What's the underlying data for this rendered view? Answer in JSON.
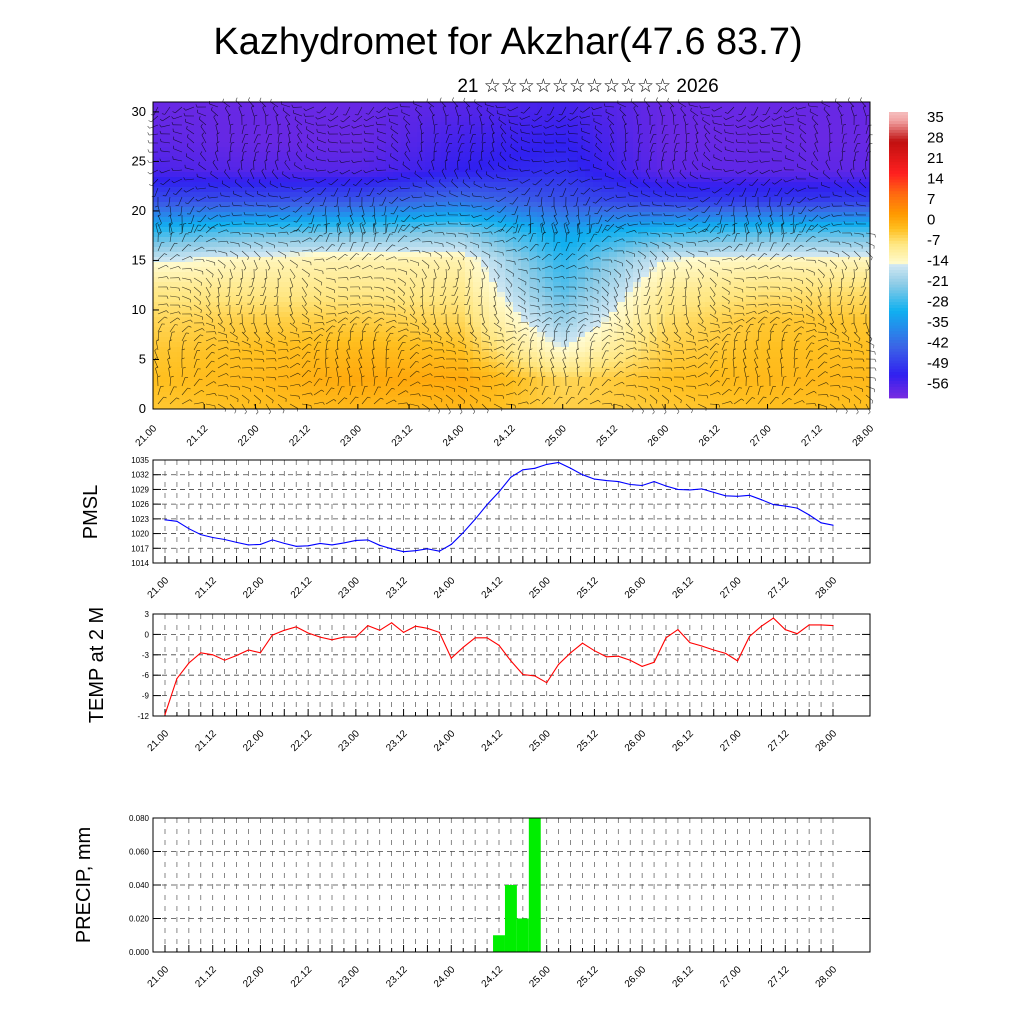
{
  "title": "Kazhydromet for Akzhar(47.6 83.7)",
  "subtitle": "21 ☆☆☆☆☆☆☆☆☆☆☆ 2026",
  "time_labels": [
    "21.00",
    "21.12",
    "22.00",
    "22.12",
    "23.00",
    "23.12",
    "24.00",
    "24.12",
    "25.00",
    "25.12",
    "26.00",
    "26.12",
    "27.00",
    "27.12",
    "28.00"
  ],
  "chart_data": [
    {
      "type": "heatmap",
      "name": "vertical-section",
      "x_days": [
        21,
        22,
        23,
        24,
        25,
        26,
        27,
        28
      ],
      "y_heights": [
        0,
        3,
        6,
        9,
        12,
        15,
        18,
        21,
        24,
        27,
        30
      ],
      "yticks": [
        "0",
        "5",
        "10",
        "15",
        "20",
        "25",
        "30"
      ],
      "ylim": [
        0,
        31
      ],
      "values": [
        [
          -3,
          -2,
          -1,
          -1,
          -4,
          -3,
          -2,
          -2
        ],
        [
          -2,
          -1,
          1,
          1,
          -5,
          -2,
          -1,
          -1
        ],
        [
          -3,
          -2,
          -1,
          -2,
          -14,
          -4,
          -2,
          -2
        ],
        [
          -5,
          -4,
          -4,
          -5,
          -20,
          -6,
          -3,
          -3
        ],
        [
          -8,
          -8,
          -8,
          -8,
          -25,
          -9,
          -7,
          -6
        ],
        [
          -15,
          -12,
          -11,
          -11,
          -28,
          -14,
          -12,
          -12
        ],
        [
          -28,
          -25,
          -24,
          -22,
          -32,
          -28,
          -26,
          -26
        ],
        [
          -45,
          -45,
          -44,
          -40,
          -45,
          -48,
          -48,
          -48
        ],
        [
          -55,
          -56,
          -56,
          -52,
          -50,
          -57,
          -57,
          -57
        ],
        [
          -57,
          -58,
          -58,
          -54,
          -52,
          -58,
          -58,
          -58
        ],
        [
          -58,
          -58,
          -58,
          -56,
          -54,
          -58,
          -58,
          -58
        ]
      ],
      "colorbar_labels": [
        "35",
        "28",
        "21",
        "14",
        "7",
        "0",
        "-7",
        "-14",
        "-21",
        "-28",
        "-35",
        "-42",
        "-49",
        "-56"
      ],
      "colorbar_range": [
        -60,
        38
      ],
      "overlay": "wind barbs"
    },
    {
      "type": "line",
      "name": "pmsl",
      "ylabel": "PMSL",
      "color": "#0000ff",
      "ylim": [
        1014,
        1035
      ],
      "yticks": [
        "1035",
        "1032",
        "1029",
        "1026",
        "1023",
        "1020",
        "1017",
        "1014"
      ],
      "step_hours": 3,
      "values": [
        1022.8,
        1022.5,
        1021,
        1019.8,
        1019.2,
        1018.8,
        1018.2,
        1017.7,
        1017.8,
        1018.7,
        1018,
        1017.4,
        1017.5,
        1018,
        1017.7,
        1018.1,
        1018.6,
        1018.7,
        1017.6,
        1016.9,
        1016.3,
        1016.5,
        1016.9,
        1016.4,
        1017.8,
        1020.2,
        1022.9,
        1025.9,
        1028.5,
        1031.5,
        1033,
        1033.3,
        1034.1,
        1034.5,
        1033.3,
        1032,
        1031.1,
        1030.8,
        1030.6,
        1030,
        1029.8,
        1030.6,
        1029.7,
        1029,
        1028.9,
        1029.1,
        1028.4,
        1027.7,
        1027.6,
        1027.8,
        1026.9,
        1025.9,
        1025.6,
        1025.2,
        1023.8,
        1022.2,
        1021.7
      ]
    },
    {
      "type": "line",
      "name": "temp",
      "ylabel": "TEMP at 2 M",
      "color": "#ff0000",
      "ylim": [
        -12,
        3
      ],
      "yticks": [
        "3",
        "0",
        "-3",
        "-6",
        "-9",
        "-12"
      ],
      "step_hours": 3,
      "values": [
        -11.8,
        -6.5,
        -4.2,
        -2.7,
        -3,
        -3.8,
        -3.1,
        -2.3,
        -2.7,
        -0.1,
        0.6,
        1.1,
        0.2,
        -0.4,
        -0.8,
        -0.4,
        -0.4,
        1.3,
        0.6,
        1.7,
        0.3,
        1.2,
        0.9,
        0.3,
        -3.5,
        -1.9,
        -0.5,
        -0.5,
        -1.6,
        -3.9,
        -5.9,
        -6.1,
        -7.1,
        -4.4,
        -2.7,
        -1.3,
        -2.4,
        -3.3,
        -3.2,
        -3.8,
        -4.7,
        -4.1,
        -0.5,
        0.7,
        -1.2,
        -1.7,
        -2.3,
        -2.8,
        -3.9,
        -0.3,
        1.2,
        2.4,
        0.7,
        0.1,
        1.4,
        1.4,
        1.3
      ]
    },
    {
      "type": "bar",
      "name": "precip",
      "ylabel": "PRECIP, mm",
      "color": "#00ee00",
      "ylim": [
        0,
        0.08
      ],
      "yticks": [
        "0.080",
        "0.060",
        "0.040",
        "0.020",
        "0.000"
      ],
      "bars": [
        {
          "step": 28,
          "value": 0.01
        },
        {
          "step": 29,
          "value": 0.04
        },
        {
          "step": 30,
          "value": 0.02
        },
        {
          "step": 31,
          "value": 0.08
        }
      ]
    }
  ]
}
